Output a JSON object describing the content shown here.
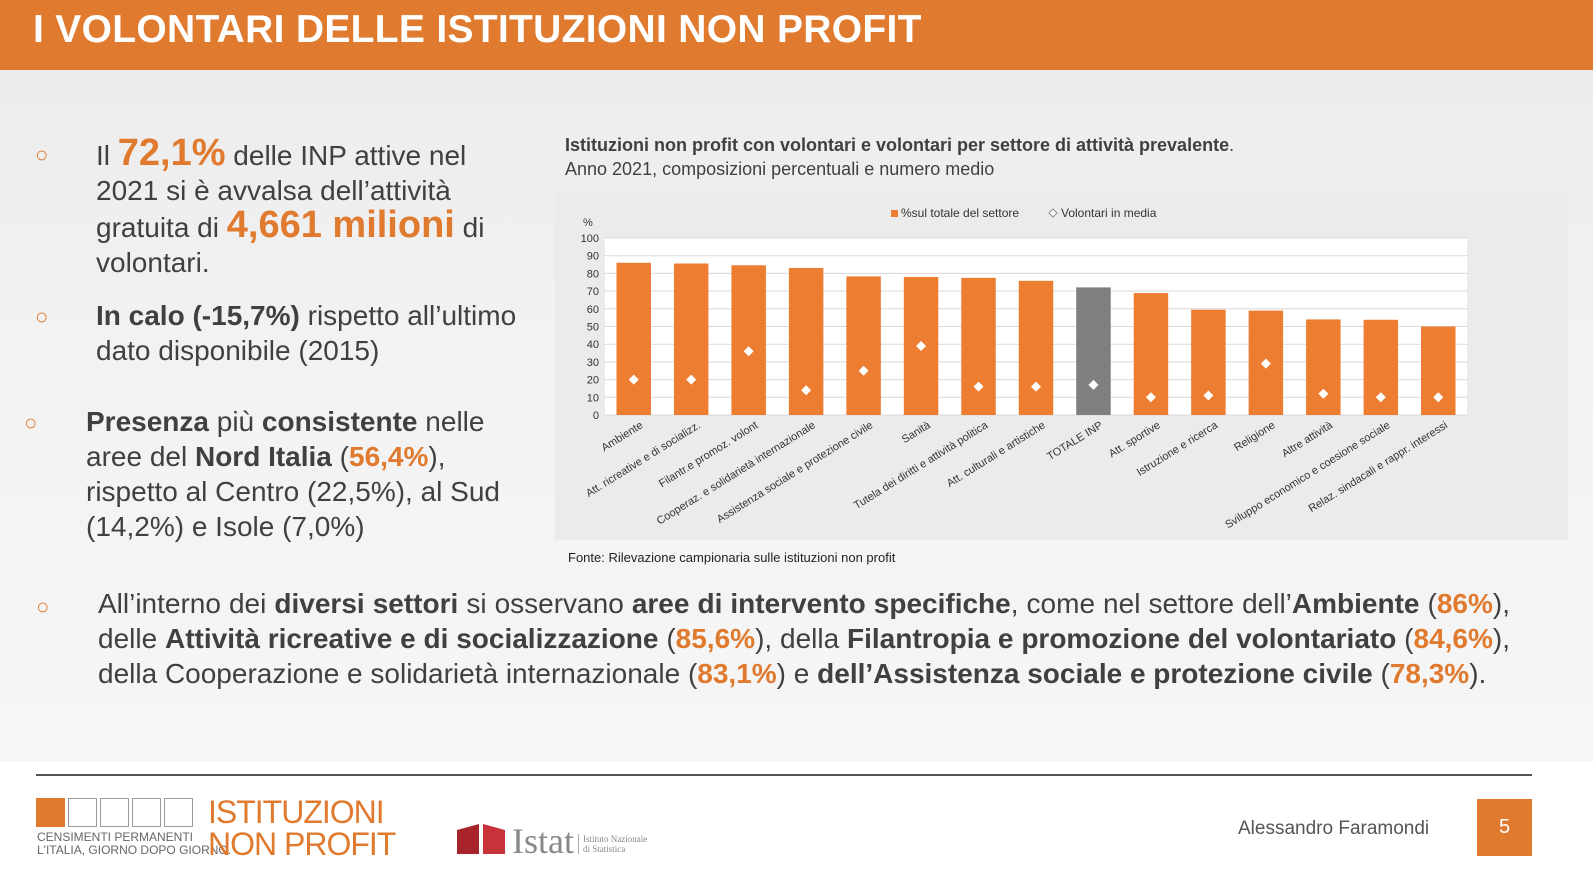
{
  "header": {
    "title": "I VOLONTARI DELLE ISTITUZIONI NON PROFIT"
  },
  "bullets": {
    "b1": {
      "t1": "Il ",
      "h1": "72,1%",
      "t2": " delle INP attive nel 2021 si è avvalsa dell’attività gratuita di ",
      "h2": "4,661 milioni",
      "t3": " di volontari."
    },
    "b2": {
      "s1": "In calo (-15,7%)",
      "t1": " rispetto all’ultimo dato disponibile (2015)"
    },
    "b3": {
      "s1": "Presenza",
      "t1": " più ",
      "s2": "consistente",
      "t2": " nelle aree del ",
      "s3": "Nord Italia",
      "t3": " (",
      "h1": "56,4%",
      "t4": "), rispetto al Centro (22,5%), al Sud (14,2%) e Isole (7,0%)"
    }
  },
  "chart_heading": {
    "title": "Istituzioni non profit con volontari e volontari per settore di attività prevalente",
    "period": ".",
    "subtitle": "Anno 2021, composizioni percentuali e numero medio"
  },
  "chart_source": "Fonte: Rilevazione campionaria sulle istituzioni non profit",
  "chart_data": {
    "type": "bar",
    "ylabel": "%",
    "ylim": [
      0,
      100
    ],
    "yticks": [
      "0",
      "10",
      "20",
      "30",
      "40",
      "50",
      "60",
      "70",
      "80",
      "90",
      "100"
    ],
    "legend_position": "top",
    "categories": [
      "Ambiente",
      "Att. ricreative e di socializz.",
      "Filantr.e promoz. volont",
      "Cooperaz. e solidarietà internazionale",
      "Assistenza sociale e protezione civile",
      "Sanità",
      "Tutela dei diritti e attività politica",
      "Att. culturali e artistiche",
      "TOTALE INP",
      "Att. sportive",
      "Istruzione e ricerca",
      "Religione",
      "Altre attività",
      "Sviluppo economico e coesione sociale",
      "Relaz. sindacali e rappr. interessi"
    ],
    "series": [
      {
        "name": "%sul totale del settore",
        "type": "bar",
        "color": "#ed7d31",
        "highlight_color": "#7f7f7f",
        "highlight_index": 8,
        "values": [
          86.0,
          85.6,
          84.6,
          83.1,
          78.3,
          78.0,
          77.5,
          75.8,
          72.1,
          68.9,
          59.5,
          59.0,
          54.0,
          53.8,
          50.0
        ]
      },
      {
        "name": "Volontari in media",
        "type": "marker",
        "marker": "diamond",
        "color": "#ffffff",
        "values": [
          20,
          20,
          36,
          14,
          25,
          39,
          16,
          16,
          17,
          10,
          11,
          29,
          12,
          10,
          10
        ]
      }
    ]
  },
  "bottom": {
    "t1": "All’interno dei ",
    "s1": "diversi settori",
    "t2": " si osservano ",
    "s2": "aree di intervento specifiche",
    "t3": ", come nel settore dell’",
    "s3": "Ambiente",
    "t4": " (",
    "h1": "86%",
    "t5": "), delle ",
    "s4": "Attività ricreative e di socializzazione",
    "t6": " (",
    "h2": "85,6%",
    "t7": "), della ",
    "s5": "Filantropia e promozione del volontariato",
    "t8": " (",
    "h3": "84,6%",
    "t9": "), della Cooperazione e solidarietà internazionale (",
    "h4": "83,1%",
    "t10": ") e ",
    "s6": "dell’Assistenza sociale e protezione civile",
    "t11": " (",
    "h5": "78,3%",
    "t12": ")."
  },
  "footer": {
    "censimenti_line1": "CENSIMENTI PERMANENTI",
    "censimenti_line2": "L'ITALIA, GIORNO DOPO GIORNO.",
    "inp_line1": "ISTITUZIONI",
    "inp_line2": "NON PROFIT",
    "istat": "Istat",
    "istat_sub1": "Istituto Nazionale",
    "istat_sub2": "di Statistica",
    "author": "Alessandro Faramondi",
    "page": "5"
  }
}
